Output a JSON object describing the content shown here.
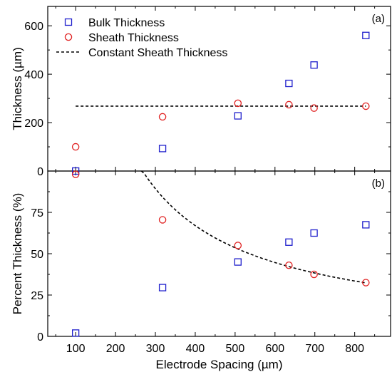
{
  "chart_data": {
    "type": "scatter",
    "xlabel": "Electrode Spacing (µm)",
    "x_ticks": [
      100,
      200,
      300,
      400,
      500,
      600,
      700,
      800
    ],
    "xlim": [
      30,
      890
    ],
    "colors": {
      "bulk": "#1f1fcc",
      "sheath": "#e02020",
      "fit": "#000000"
    },
    "legend": {
      "placement": "top-left",
      "entries": [
        "Bulk Thickness",
        "Sheath Thickness",
        "Constant Sheath Thickness"
      ]
    },
    "panels": [
      {
        "tag": "(a)",
        "ylabel": "Thickness (µm)",
        "ylim": [
          0,
          680
        ],
        "y_ticks": [
          0,
          200,
          400,
          600
        ],
        "series": [
          {
            "name": "Bulk Thickness",
            "marker": "square",
            "x": [
              100,
              318,
              507,
              635,
              698,
              828
            ],
            "y": [
              0,
              93,
              228,
              362,
              438,
              560
            ]
          },
          {
            "name": "Sheath Thickness",
            "marker": "circle",
            "x": [
              100,
              318,
              507,
              635,
              698,
              828
            ],
            "y": [
              100,
              224,
              280,
              274,
              260,
              268
            ]
          }
        ],
        "constant_line": {
          "name": "Constant Sheath Thickness",
          "y": 268,
          "x_range": [
            100,
            828
          ]
        }
      },
      {
        "tag": "(b)",
        "ylabel": "Percent Thickness (%)",
        "ylim": [
          0,
          100
        ],
        "y_ticks": [
          0,
          25,
          50,
          75
        ],
        "series": [
          {
            "name": "Bulk Thickness",
            "marker": "square",
            "x": [
              100,
              318,
              507,
              635,
              698,
              828
            ],
            "y": [
              2,
              29.5,
              45,
              57,
              62.5,
              67.5
            ]
          },
          {
            "name": "Sheath Thickness",
            "marker": "circle",
            "x": [
              100,
              318,
              507,
              635,
              698,
              828
            ],
            "y": [
              98,
              70.5,
              55,
              43,
              37.5,
              32.5
            ]
          }
        ],
        "curve": {
          "constant": 268,
          "x_range": [
            265,
            828
          ]
        }
      }
    ]
  }
}
